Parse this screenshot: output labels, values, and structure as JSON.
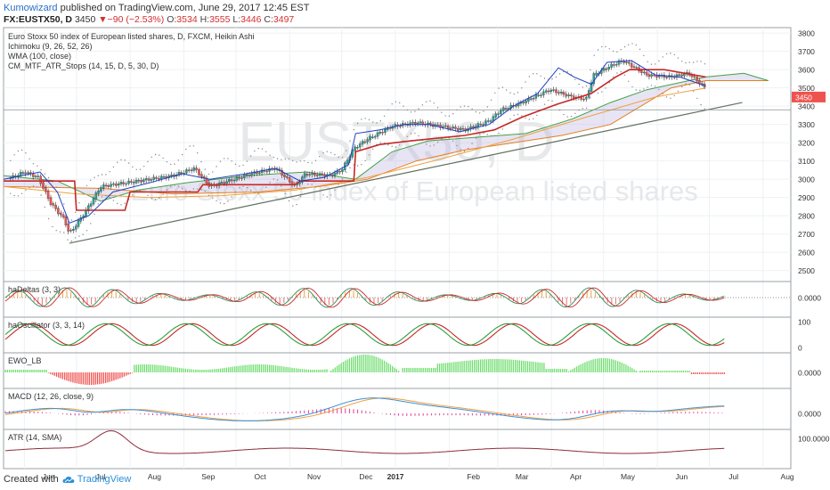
{
  "header": {
    "author": "Kumowizard",
    "published": "published on TradingView.com, June 29, 2017 12:45 EST",
    "symbol": "FX:EUSTX50, D",
    "last": "3450",
    "change_arrow": "▼",
    "change": "−90 (−2.53%)",
    "o_label": "O:",
    "o_val": "3534",
    "h_label": "H:",
    "h_val": "3555",
    "l_label": "L:",
    "l_val": "3446",
    "c_label": "C:",
    "c_val": "3497"
  },
  "footer": {
    "created_with": "Created with",
    "brand": "TradingView"
  },
  "watermark": {
    "symbol": "EUSTX50, D",
    "description": "Euro Stoxx 50 index of European listed shares"
  },
  "colors": {
    "up": "#26a69a",
    "down": "#ef5350",
    "tenkan": "#1f3fbf",
    "kijun": "#c62828",
    "span_a": "#43a047",
    "span_b": "#e67e22",
    "wma": "#f0a040",
    "trend": "#607060",
    "macd": "#3d8fd6",
    "signal": "#f0a040",
    "hist": "#e0409a",
    "atr": "#8e2b3a"
  },
  "chart_data": [
    {
      "type": "candlestick",
      "panel": "main",
      "title": "Euro Stoxx 50 index of European listed shares, D, FXCM, Heikin Ashi",
      "indicators": [
        "Ichimoku (9, 26, 52, 26)",
        "WMA (100, close)",
        "CM_MTF_ATR_Stops (14, 15, D, 5, 30, D)"
      ],
      "x_ticks": [
        "Jun",
        "Jul",
        "Aug",
        "Sep",
        "Oct",
        "Nov",
        "Dec",
        "2017",
        "Feb",
        "Mar",
        "Apr",
        "May",
        "Jun",
        "Jul",
        "Aug"
      ],
      "y_ticks": [
        2500,
        2600,
        2700,
        2800,
        2900,
        3000,
        3100,
        3200,
        3300,
        3400,
        3500,
        3600,
        3700,
        3800
      ],
      "ylim": [
        2440,
        3830
      ],
      "last_price_label": "3450",
      "close_path": [
        [
          "2016-05-20",
          2990
        ],
        [
          "2016-06-01",
          3040
        ],
        [
          "2016-06-09",
          3010
        ],
        [
          "2016-06-16",
          2870
        ],
        [
          "2016-06-24",
          2780
        ],
        [
          "2016-06-27",
          2700
        ],
        [
          "2016-07-06",
          2820
        ],
        [
          "2016-07-15",
          2960
        ],
        [
          "2016-07-29",
          2980
        ],
        [
          "2016-08-12",
          3000
        ],
        [
          "2016-08-26",
          3020
        ],
        [
          "2016-09-07",
          3060
        ],
        [
          "2016-09-16",
          2960
        ],
        [
          "2016-09-30",
          3000
        ],
        [
          "2016-10-10",
          3030
        ],
        [
          "2016-10-24",
          3060
        ],
        [
          "2016-11-04",
          2960
        ],
        [
          "2016-11-10",
          3030
        ],
        [
          "2016-11-24",
          3020
        ],
        [
          "2016-12-01",
          3050
        ],
        [
          "2016-12-08",
          3170
        ],
        [
          "2016-12-16",
          3220
        ],
        [
          "2016-12-30",
          3290
        ],
        [
          "2017-01-13",
          3310
        ],
        [
          "2017-01-27",
          3290
        ],
        [
          "2017-02-10",
          3270
        ],
        [
          "2017-02-24",
          3320
        ],
        [
          "2017-03-03",
          3380
        ],
        [
          "2017-03-15",
          3420
        ],
        [
          "2017-03-31",
          3490
        ],
        [
          "2017-04-13",
          3450
        ],
        [
          "2017-04-21",
          3440
        ],
        [
          "2017-04-25",
          3570
        ],
        [
          "2017-05-05",
          3620
        ],
        [
          "2017-05-12",
          3650
        ],
        [
          "2017-05-26",
          3570
        ],
        [
          "2017-06-09",
          3560
        ],
        [
          "2017-06-19",
          3580
        ],
        [
          "2017-06-29",
          3497
        ]
      ],
      "tenkan": [
        [
          "2016-05-20",
          3000
        ],
        [
          "2016-06-10",
          3040
        ],
        [
          "2016-06-20",
          2930
        ],
        [
          "2016-06-27",
          2760
        ],
        [
          "2016-07-08",
          2800
        ],
        [
          "2016-07-22",
          2930
        ],
        [
          "2016-08-12",
          2980
        ],
        [
          "2016-08-31",
          3030
        ],
        [
          "2016-09-16",
          3000
        ],
        [
          "2016-10-07",
          3030
        ],
        [
          "2016-10-24",
          3060
        ],
        [
          "2016-11-07",
          2990
        ],
        [
          "2016-11-21",
          3010
        ],
        [
          "2016-12-05",
          3080
        ],
        [
          "2016-12-09",
          3250
        ],
        [
          "2016-12-23",
          3270
        ],
        [
          "2017-01-06",
          3300
        ],
        [
          "2017-01-20",
          3300
        ],
        [
          "2017-02-07",
          3260
        ],
        [
          "2017-02-24",
          3300
        ],
        [
          "2017-03-10",
          3400
        ],
        [
          "2017-03-24",
          3470
        ],
        [
          "2017-04-05",
          3610
        ],
        [
          "2017-04-14",
          3560
        ],
        [
          "2017-04-24",
          3520
        ],
        [
          "2017-05-03",
          3640
        ],
        [
          "2017-05-17",
          3650
        ],
        [
          "2017-05-31",
          3570
        ],
        [
          "2017-06-14",
          3560
        ],
        [
          "2017-06-29",
          3510
        ]
      ],
      "kijun": [
        [
          "2016-05-20",
          2990
        ],
        [
          "2016-06-30",
          2990
        ],
        [
          "2016-07-01",
          2830
        ],
        [
          "2016-07-29",
          2830
        ],
        [
          "2016-08-01",
          2930
        ],
        [
          "2016-09-09",
          2930
        ],
        [
          "2016-09-12",
          2970
        ],
        [
          "2016-11-04",
          2970
        ],
        [
          "2016-11-07",
          2990
        ],
        [
          "2016-12-08",
          2990
        ],
        [
          "2016-12-09",
          3150
        ],
        [
          "2016-12-23",
          3190
        ],
        [
          "2017-01-10",
          3210
        ],
        [
          "2017-02-10",
          3240
        ],
        [
          "2017-02-27",
          3270
        ],
        [
          "2017-03-15",
          3340
        ],
        [
          "2017-04-04",
          3410
        ],
        [
          "2017-04-24",
          3470
        ],
        [
          "2017-05-08",
          3560
        ],
        [
          "2017-05-16",
          3600
        ],
        [
          "2017-06-05",
          3600
        ],
        [
          "2017-06-29",
          3560
        ]
      ],
      "span_a": [
        [
          "2016-05-20",
          3020
        ],
        [
          "2016-06-20",
          2990
        ],
        [
          "2016-07-15",
          2880
        ],
        [
          "2016-08-05",
          2940
        ],
        [
          "2016-09-02",
          2980
        ],
        [
          "2016-10-07",
          3020
        ],
        [
          "2016-11-11",
          3040
        ],
        [
          "2016-12-09",
          3000
        ],
        [
          "2016-12-30",
          3150
        ],
        [
          "2017-01-20",
          3210
        ],
        [
          "2017-02-17",
          3230
        ],
        [
          "2017-03-17",
          3250
        ],
        [
          "2017-04-13",
          3330
        ],
        [
          "2017-05-05",
          3420
        ],
        [
          "2017-05-26",
          3490
        ],
        [
          "2017-06-29",
          3560
        ],
        [
          "2017-07-21",
          3580
        ],
        [
          "2017-08-04",
          3540
        ]
      ],
      "span_b": [
        [
          "2016-05-20",
          2960
        ],
        [
          "2016-07-15",
          2950
        ],
        [
          "2016-08-26",
          2920
        ],
        [
          "2016-10-14",
          2930
        ],
        [
          "2016-11-18",
          2960
        ],
        [
          "2016-12-16",
          3000
        ],
        [
          "2017-01-13",
          3100
        ],
        [
          "2017-02-10",
          3160
        ],
        [
          "2017-03-10",
          3200
        ],
        [
          "2017-04-07",
          3240
        ],
        [
          "2017-05-05",
          3300
        ],
        [
          "2017-05-26",
          3420
        ],
        [
          "2017-06-09",
          3500
        ],
        [
          "2017-06-29",
          3540
        ],
        [
          "2017-08-04",
          3540
        ]
      ],
      "wma": [
        [
          "2016-05-20",
          2960
        ],
        [
          "2016-07-01",
          2920
        ],
        [
          "2016-08-12",
          2900
        ],
        [
          "2016-09-23",
          2910
        ],
        [
          "2016-11-04",
          2940
        ],
        [
          "2016-12-16",
          3010
        ],
        [
          "2017-01-27",
          3110
        ],
        [
          "2017-03-10",
          3220
        ],
        [
          "2017-04-21",
          3340
        ],
        [
          "2017-05-31",
          3450
        ],
        [
          "2017-06-29",
          3500
        ]
      ],
      "trendline": [
        [
          "2016-06-27",
          2650
        ],
        [
          "2017-07-20",
          3420
        ]
      ],
      "resistance_level": 3380
    },
    {
      "type": "area",
      "panel": "haDeltas",
      "title": "haDeltas (3, 3)",
      "y_ticks": [
        "0.0000"
      ]
    },
    {
      "type": "line",
      "panel": "haOscillator",
      "title": "haOscillator (3, 3, 14)",
      "y_ticks": [
        100,
        0
      ],
      "ylim": [
        0,
        100
      ]
    },
    {
      "type": "bar",
      "panel": "EWO",
      "title": "EWO_LB",
      "y_ticks": [
        "0.0000"
      ]
    },
    {
      "type": "line",
      "panel": "MACD",
      "title": "MACD (12, 26, close, 9)",
      "y_ticks": [
        "0.0000"
      ]
    },
    {
      "type": "line",
      "panel": "ATR",
      "title": "ATR (14, SMA)",
      "y_ticks": [
        "100.0000"
      ]
    }
  ]
}
